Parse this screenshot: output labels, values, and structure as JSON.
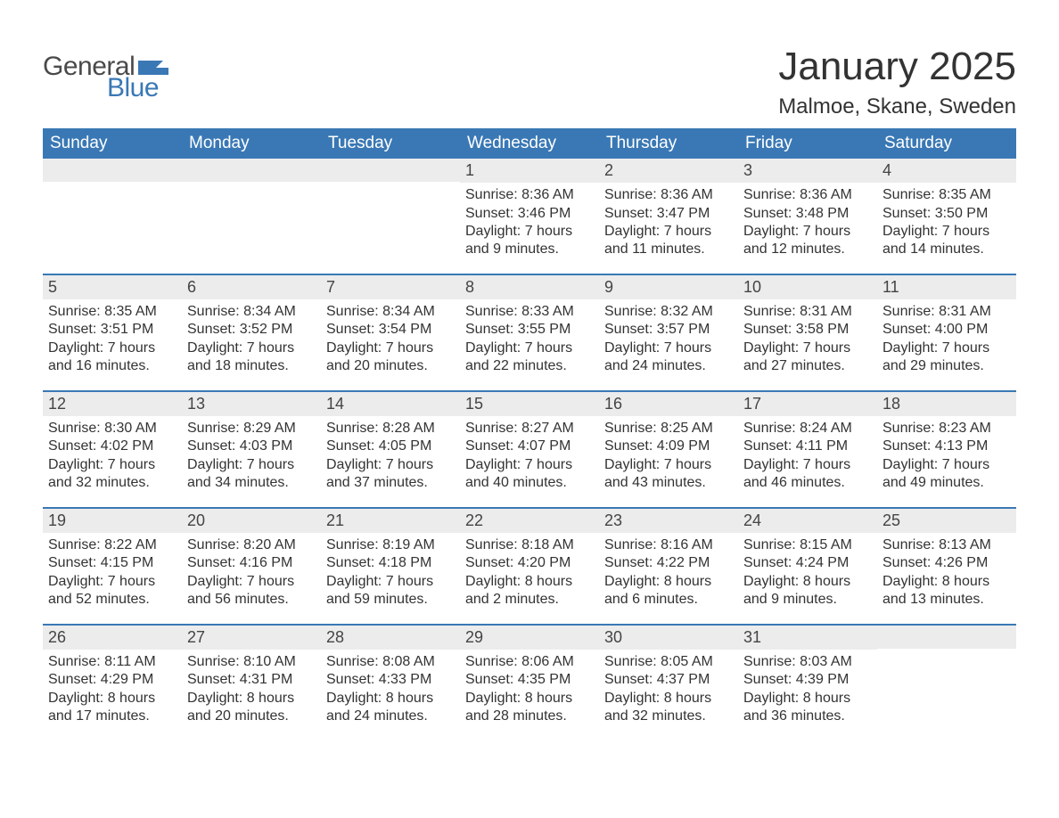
{
  "brand": {
    "text_general": "General",
    "text_blue": "Blue",
    "flag_color": "#3a78b5"
  },
  "title": "January 2025",
  "location": "Malmoe, Skane, Sweden",
  "colors": {
    "header_bg": "#3a78b5",
    "header_text": "#ffffff",
    "daynum_bg": "#ececec",
    "row_border": "#3a78b5",
    "body_text": "#333333",
    "page_bg": "#ffffff"
  },
  "day_headers": [
    "Sunday",
    "Monday",
    "Tuesday",
    "Wednesday",
    "Thursday",
    "Friday",
    "Saturday"
  ],
  "weeks": [
    [
      {
        "day": "",
        "sunrise": "",
        "sunset": "",
        "daylight": ""
      },
      {
        "day": "",
        "sunrise": "",
        "sunset": "",
        "daylight": ""
      },
      {
        "day": "",
        "sunrise": "",
        "sunset": "",
        "daylight": ""
      },
      {
        "day": "1",
        "sunrise": "Sunrise: 8:36 AM",
        "sunset": "Sunset: 3:46 PM",
        "daylight": "Daylight: 7 hours and 9 minutes."
      },
      {
        "day": "2",
        "sunrise": "Sunrise: 8:36 AM",
        "sunset": "Sunset: 3:47 PM",
        "daylight": "Daylight: 7 hours and 11 minutes."
      },
      {
        "day": "3",
        "sunrise": "Sunrise: 8:36 AM",
        "sunset": "Sunset: 3:48 PM",
        "daylight": "Daylight: 7 hours and 12 minutes."
      },
      {
        "day": "4",
        "sunrise": "Sunrise: 8:35 AM",
        "sunset": "Sunset: 3:50 PM",
        "daylight": "Daylight: 7 hours and 14 minutes."
      }
    ],
    [
      {
        "day": "5",
        "sunrise": "Sunrise: 8:35 AM",
        "sunset": "Sunset: 3:51 PM",
        "daylight": "Daylight: 7 hours and 16 minutes."
      },
      {
        "day": "6",
        "sunrise": "Sunrise: 8:34 AM",
        "sunset": "Sunset: 3:52 PM",
        "daylight": "Daylight: 7 hours and 18 minutes."
      },
      {
        "day": "7",
        "sunrise": "Sunrise: 8:34 AM",
        "sunset": "Sunset: 3:54 PM",
        "daylight": "Daylight: 7 hours and 20 minutes."
      },
      {
        "day": "8",
        "sunrise": "Sunrise: 8:33 AM",
        "sunset": "Sunset: 3:55 PM",
        "daylight": "Daylight: 7 hours and 22 minutes."
      },
      {
        "day": "9",
        "sunrise": "Sunrise: 8:32 AM",
        "sunset": "Sunset: 3:57 PM",
        "daylight": "Daylight: 7 hours and 24 minutes."
      },
      {
        "day": "10",
        "sunrise": "Sunrise: 8:31 AM",
        "sunset": "Sunset: 3:58 PM",
        "daylight": "Daylight: 7 hours and 27 minutes."
      },
      {
        "day": "11",
        "sunrise": "Sunrise: 8:31 AM",
        "sunset": "Sunset: 4:00 PM",
        "daylight": "Daylight: 7 hours and 29 minutes."
      }
    ],
    [
      {
        "day": "12",
        "sunrise": "Sunrise: 8:30 AM",
        "sunset": "Sunset: 4:02 PM",
        "daylight": "Daylight: 7 hours and 32 minutes."
      },
      {
        "day": "13",
        "sunrise": "Sunrise: 8:29 AM",
        "sunset": "Sunset: 4:03 PM",
        "daylight": "Daylight: 7 hours and 34 minutes."
      },
      {
        "day": "14",
        "sunrise": "Sunrise: 8:28 AM",
        "sunset": "Sunset: 4:05 PM",
        "daylight": "Daylight: 7 hours and 37 minutes."
      },
      {
        "day": "15",
        "sunrise": "Sunrise: 8:27 AM",
        "sunset": "Sunset: 4:07 PM",
        "daylight": "Daylight: 7 hours and 40 minutes."
      },
      {
        "day": "16",
        "sunrise": "Sunrise: 8:25 AM",
        "sunset": "Sunset: 4:09 PM",
        "daylight": "Daylight: 7 hours and 43 minutes."
      },
      {
        "day": "17",
        "sunrise": "Sunrise: 8:24 AM",
        "sunset": "Sunset: 4:11 PM",
        "daylight": "Daylight: 7 hours and 46 minutes."
      },
      {
        "day": "18",
        "sunrise": "Sunrise: 8:23 AM",
        "sunset": "Sunset: 4:13 PM",
        "daylight": "Daylight: 7 hours and 49 minutes."
      }
    ],
    [
      {
        "day": "19",
        "sunrise": "Sunrise: 8:22 AM",
        "sunset": "Sunset: 4:15 PM",
        "daylight": "Daylight: 7 hours and 52 minutes."
      },
      {
        "day": "20",
        "sunrise": "Sunrise: 8:20 AM",
        "sunset": "Sunset: 4:16 PM",
        "daylight": "Daylight: 7 hours and 56 minutes."
      },
      {
        "day": "21",
        "sunrise": "Sunrise: 8:19 AM",
        "sunset": "Sunset: 4:18 PM",
        "daylight": "Daylight: 7 hours and 59 minutes."
      },
      {
        "day": "22",
        "sunrise": "Sunrise: 8:18 AM",
        "sunset": "Sunset: 4:20 PM",
        "daylight": "Daylight: 8 hours and 2 minutes."
      },
      {
        "day": "23",
        "sunrise": "Sunrise: 8:16 AM",
        "sunset": "Sunset: 4:22 PM",
        "daylight": "Daylight: 8 hours and 6 minutes."
      },
      {
        "day": "24",
        "sunrise": "Sunrise: 8:15 AM",
        "sunset": "Sunset: 4:24 PM",
        "daylight": "Daylight: 8 hours and 9 minutes."
      },
      {
        "day": "25",
        "sunrise": "Sunrise: 8:13 AM",
        "sunset": "Sunset: 4:26 PM",
        "daylight": "Daylight: 8 hours and 13 minutes."
      }
    ],
    [
      {
        "day": "26",
        "sunrise": "Sunrise: 8:11 AM",
        "sunset": "Sunset: 4:29 PM",
        "daylight": "Daylight: 8 hours and 17 minutes."
      },
      {
        "day": "27",
        "sunrise": "Sunrise: 8:10 AM",
        "sunset": "Sunset: 4:31 PM",
        "daylight": "Daylight: 8 hours and 20 minutes."
      },
      {
        "day": "28",
        "sunrise": "Sunrise: 8:08 AM",
        "sunset": "Sunset: 4:33 PM",
        "daylight": "Daylight: 8 hours and 24 minutes."
      },
      {
        "day": "29",
        "sunrise": "Sunrise: 8:06 AM",
        "sunset": "Sunset: 4:35 PM",
        "daylight": "Daylight: 8 hours and 28 minutes."
      },
      {
        "day": "30",
        "sunrise": "Sunrise: 8:05 AM",
        "sunset": "Sunset: 4:37 PM",
        "daylight": "Daylight: 8 hours and 32 minutes."
      },
      {
        "day": "31",
        "sunrise": "Sunrise: 8:03 AM",
        "sunset": "Sunset: 4:39 PM",
        "daylight": "Daylight: 8 hours and 36 minutes."
      },
      {
        "day": "",
        "sunrise": "",
        "sunset": "",
        "daylight": ""
      }
    ]
  ]
}
